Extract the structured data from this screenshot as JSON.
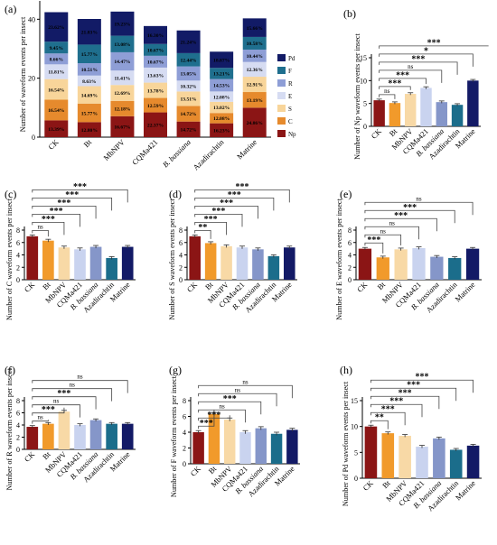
{
  "treatments": [
    "CK",
    "Bt",
    "MbNPV",
    "CQMa421",
    "B. bassiana",
    "Azadirachtin",
    "Matrine"
  ],
  "colors": {
    "treatments": [
      "#8b1515",
      "#f19a2b",
      "#f8d9a6",
      "#c9d3ef",
      "#8596c9",
      "#1b6d8b",
      "#131a66"
    ],
    "stack": {
      "Np": "#8b1515",
      "C": "#e68a2d",
      "S": "#f8d59a",
      "E": "#d6dcf2",
      "R": "#8e9ed6",
      "F": "#1f6f8e",
      "Pd": "#121b66"
    }
  },
  "chart_data": [
    {
      "panel": "(a)",
      "type": "bar",
      "stacked": true,
      "categories": [
        "CK",
        "Bt",
        "MbNPV",
        "CQMa421",
        "B. bassiana",
        "Azadirachtin",
        "Matrine"
      ],
      "ylabel": "Number of waveform events per insect",
      "ylim": [
        0,
        45
      ],
      "yticks": [
        "0",
        "20",
        "40"
      ],
      "legend_position": "right",
      "series": [
        {
          "name": "Np",
          "values": [
            5.7,
            5.1,
            7.1,
            8.4,
            5.3,
            4.7,
            10.0
          ],
          "labels": [
            "13.39%",
            "12.80%",
            "16.67%",
            "22.37%",
            "14.72%",
            "16.23%",
            "24.86%"
          ]
        },
        {
          "name": "C",
          "values": [
            7.0,
            6.3,
            5.2,
            4.9,
            5.3,
            3.5,
            5.3
          ],
          "labels": [
            "16.54%",
            "15.77%",
            "12.18%",
            "12.59%",
            "14.72%",
            "12.08%",
            "13.19%"
          ]
        },
        {
          "name": "S",
          "values": [
            7.0,
            5.9,
            5.4,
            5.2,
            4.9,
            3.8,
            5.2
          ],
          "labels": [
            "16.54%",
            "14.69%",
            "12.69%",
            "13.78%",
            "13.51%",
            "13.02%",
            "12.91%"
          ]
        },
        {
          "name": "E",
          "values": [
            5.0,
            3.6,
            4.9,
            5.1,
            3.7,
            3.5,
            5.0
          ],
          "labels": [
            "11.81%",
            "8.63%",
            "11.41%",
            "13.63%",
            "10.32%",
            "12.08%",
            "12.36%"
          ]
        },
        {
          "name": "R",
          "values": [
            3.7,
            4.2,
            6.2,
            4.0,
            4.8,
            4.2,
            4.2
          ],
          "labels": [
            "8.66%",
            "10.51%",
            "14.47%",
            "10.67%",
            "13.05%",
            "14.53%",
            "10.44%"
          ]
        },
        {
          "name": "F",
          "values": [
            4.0,
            6.3,
            5.6,
            4.0,
            4.5,
            3.8,
            4.3
          ],
          "labels": [
            "9.45%",
            "15.77%",
            "13.08%",
            "10.67%",
            "12.44%",
            "13.21%",
            "10.58%"
          ]
        },
        {
          "name": "Pd",
          "values": [
            10.0,
            8.7,
            8.2,
            6.1,
            7.7,
            5.5,
            6.3
          ],
          "labels": [
            "23.62%",
            "21.83%",
            "19.23%",
            "16.30%",
            "21.24%",
            "18.87%",
            "15.66%"
          ]
        }
      ]
    },
    {
      "panel": "(b)",
      "type": "bar",
      "categories": [
        "CK",
        "Bt",
        "MbNPV",
        "CQMa421",
        "B. bassiana",
        "Azadirachtin",
        "Matrine"
      ],
      "ylabel": "Number of Np waveform events per insect",
      "ylim": [
        0,
        15
      ],
      "yticks": [
        "0",
        "5",
        "10",
        "15"
      ],
      "values": [
        5.7,
        5.1,
        7.1,
        8.4,
        5.3,
        4.7,
        10.0
      ],
      "errors": [
        0.25,
        0.25,
        0.25,
        0.25,
        0.25,
        0.25,
        0.25
      ],
      "significance": [
        "ns",
        "***",
        "***",
        "ns",
        "***",
        "*",
        "***"
      ]
    },
    {
      "panel": "(c)",
      "type": "bar",
      "categories": [
        "CK",
        "Bt",
        "MbNPV",
        "CQMa421",
        "B. bassiana",
        "Azadirachtin",
        "Matrine"
      ],
      "ylabel": "Number of C waveform events per insect",
      "ylim": [
        0,
        8
      ],
      "yticks": [
        "0",
        "2",
        "4",
        "6",
        "8"
      ],
      "values": [
        7.0,
        6.3,
        5.2,
        4.9,
        5.3,
        3.5,
        5.3
      ],
      "errors": [
        0.22,
        0.22,
        0.22,
        0.22,
        0.22,
        0.22,
        0.22
      ],
      "significance": [
        "ns",
        "***",
        "***",
        "***",
        "***",
        "***"
      ]
    },
    {
      "panel": "(d)",
      "type": "bar",
      "categories": [
        "CK",
        "Bt",
        "MbNPV",
        "CQMa421",
        "B. bassiana",
        "Azadirachtin",
        "Matrine"
      ],
      "ylabel": "Number of S waveform events per insect",
      "ylim": [
        0,
        8
      ],
      "yticks": [
        "0",
        "2",
        "4",
        "6",
        "8"
      ],
      "values": [
        7.0,
        5.9,
        5.4,
        5.2,
        4.9,
        3.8,
        5.2
      ],
      "errors": [
        0.22,
        0.22,
        0.22,
        0.22,
        0.22,
        0.22,
        0.22
      ],
      "significance": [
        "**",
        "***",
        "***",
        "***",
        "***",
        "***"
      ]
    },
    {
      "panel": "(e)",
      "type": "bar",
      "categories": [
        "CK",
        "Bt",
        "MbNPV",
        "CQMa421",
        "B. bassiana",
        "Azadirachtin",
        "Matrine"
      ],
      "ylabel": "Number of E waveform events per insect",
      "ylim": [
        0,
        8
      ],
      "yticks": [
        "0",
        "2",
        "4",
        "6",
        "8"
      ],
      "values": [
        5.0,
        3.6,
        4.9,
        5.1,
        3.7,
        3.5,
        5.0
      ],
      "errors": [
        0.2,
        0.2,
        0.2,
        0.2,
        0.2,
        0.2,
        0.2
      ],
      "significance": [
        "***",
        "ns",
        "ns",
        "***",
        "***",
        "ns"
      ]
    },
    {
      "panel": "(f)",
      "type": "bar",
      "categories": [
        "CK",
        "Bt",
        "MbNPV",
        "CQMa421",
        "B. bassiana",
        "Azadirachtin",
        "Matrine"
      ],
      "ylabel": "Number of R waveform events per insect",
      "ylim": [
        0,
        8
      ],
      "yticks": [
        "0",
        "2",
        "4",
        "6",
        "8"
      ],
      "values": [
        3.7,
        4.2,
        6.2,
        4.0,
        4.8,
        4.2,
        4.2
      ],
      "errors": [
        0.2,
        0.2,
        0.2,
        0.2,
        0.2,
        0.2,
        0.2
      ],
      "significance": [
        "ns",
        "***",
        "ns",
        "***",
        "ns",
        "ns"
      ]
    },
    {
      "panel": "(g)",
      "type": "bar",
      "categories": [
        "CK",
        "Bt",
        "MbNPV",
        "CQMa421",
        "B. bassiana",
        "Azadirachtin",
        "Matrine"
      ],
      "ylabel": "Number of F waveform events per insect",
      "ylim": [
        0,
        8
      ],
      "yticks": [
        "0",
        "2",
        "4",
        "6",
        "8"
      ],
      "values": [
        4.0,
        6.3,
        5.6,
        4.0,
        4.5,
        3.8,
        4.3
      ],
      "errors": [
        0.2,
        0.2,
        0.2,
        0.2,
        0.2,
        0.2,
        0.2
      ],
      "significance": [
        "***",
        "***",
        "ns",
        "***",
        "ns",
        "ns"
      ]
    },
    {
      "panel": "(h)",
      "type": "bar",
      "categories": [
        "CK",
        "Bt",
        "MbNPV",
        "CQMa421",
        "B. bassiana",
        "Azadirachtin",
        "Matrine"
      ],
      "ylabel": "Number of Pd waveform events per insect",
      "ylim": [
        0,
        15
      ],
      "yticks": [
        "0",
        "5",
        "10",
        "15"
      ],
      "values": [
        10.0,
        8.7,
        8.2,
        6.1,
        7.7,
        5.5,
        6.3
      ],
      "errors": [
        0.25,
        0.25,
        0.25,
        0.25,
        0.25,
        0.25,
        0.25
      ],
      "significance": [
        "**",
        "***",
        "***",
        "***",
        "***",
        "***"
      ]
    }
  ]
}
